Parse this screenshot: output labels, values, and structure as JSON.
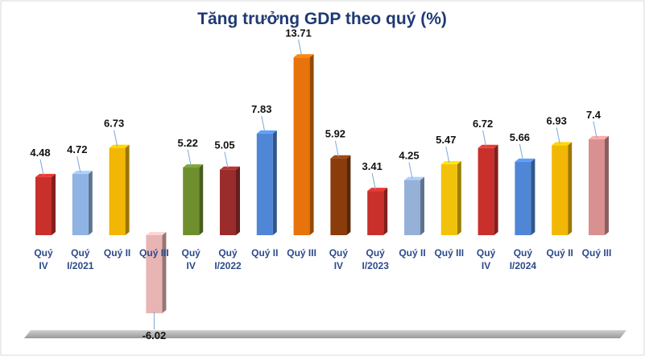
{
  "chart_data": {
    "type": "bar",
    "title": "Tăng trưởng GDP theo quý (%)",
    "xlabel": "",
    "ylabel": "",
    "ylim": [
      -7,
      15
    ],
    "grid": false,
    "legend": "none",
    "categories": [
      [
        "Quý",
        "IV"
      ],
      [
        "Quý",
        "I/2021"
      ],
      [
        "Quý II"
      ],
      [
        "Quý III"
      ],
      [
        "Quý",
        "IV"
      ],
      [
        "Quý",
        "I/2022"
      ],
      [
        "Quý II"
      ],
      [
        "Quý III"
      ],
      [
        "Quý",
        "IV"
      ],
      [
        "Quý",
        "I/2023"
      ],
      [
        "Quý II"
      ],
      [
        "Quý III"
      ],
      [
        "Quý",
        "IV"
      ],
      [
        "Quý",
        "I/2024"
      ],
      [
        "Quý II"
      ],
      [
        "Quý III"
      ]
    ],
    "values": [
      4.48,
      4.72,
      6.73,
      -6.02,
      5.22,
      5.05,
      7.83,
      13.71,
      5.92,
      3.41,
      4.25,
      5.47,
      6.72,
      5.66,
      6.93,
      7.4
    ],
    "value_labels": [
      "4.48",
      "4.72",
      "6.73",
      "-6.02",
      "5.22",
      "5.05",
      "7.83",
      "13.71",
      "5.92",
      "3.41",
      "4.25",
      "5.47",
      "6.72",
      "5.66",
      "6.93",
      "7.4"
    ],
    "bar_colors": [
      "#c9302c",
      "#8fb4e3",
      "#f2b705",
      "#e8b4b4",
      "#6f8f2f",
      "#9b2c2c",
      "#4f86d6",
      "#e8720c",
      "#8b3c0a",
      "#c9302c",
      "#95b1d8",
      "#f2c20a",
      "#c9302c",
      "#4f86d6",
      "#f2b705",
      "#d99090"
    ]
  }
}
